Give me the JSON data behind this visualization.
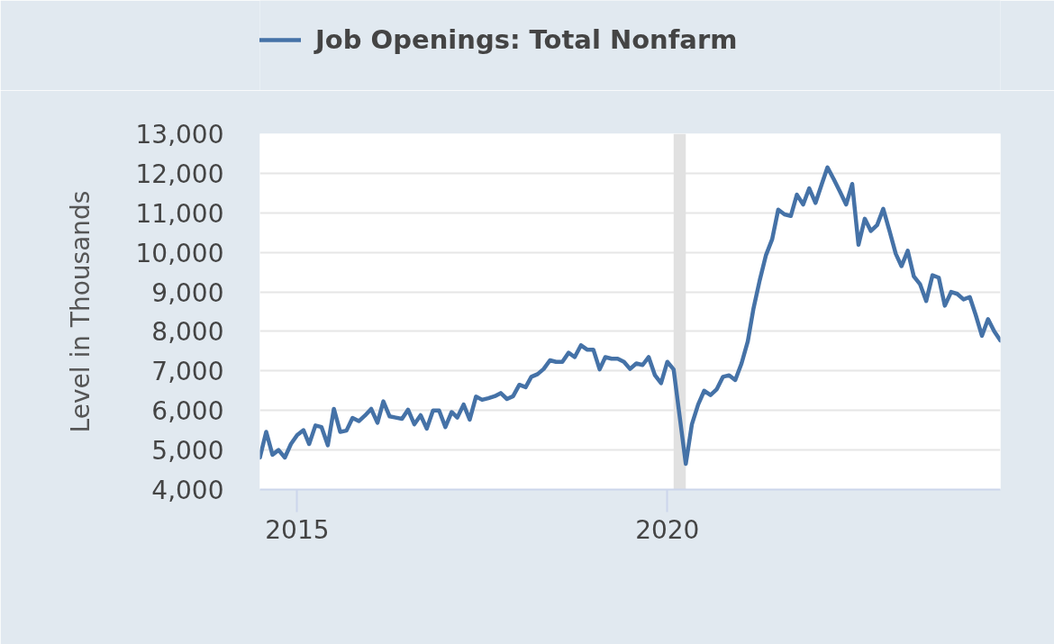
{
  "chart_data": {
    "type": "line",
    "ylabel": "Level in Thousands",
    "x": [
      "2014-07",
      "2014-08",
      "2014-09",
      "2014-10",
      "2014-11",
      "2014-12",
      "2015-01",
      "2015-02",
      "2015-03",
      "2015-04",
      "2015-05",
      "2015-06",
      "2015-07",
      "2015-08",
      "2015-09",
      "2015-10",
      "2015-11",
      "2015-12",
      "2016-01",
      "2016-02",
      "2016-03",
      "2016-04",
      "2016-05",
      "2016-06",
      "2016-07",
      "2016-08",
      "2016-09",
      "2016-10",
      "2016-11",
      "2016-12",
      "2017-01",
      "2017-02",
      "2017-03",
      "2017-04",
      "2017-05",
      "2017-06",
      "2017-07",
      "2017-08",
      "2017-09",
      "2017-10",
      "2017-11",
      "2017-12",
      "2018-01",
      "2018-02",
      "2018-03",
      "2018-04",
      "2018-05",
      "2018-06",
      "2018-07",
      "2018-08",
      "2018-09",
      "2018-10",
      "2018-11",
      "2018-12",
      "2019-01",
      "2019-02",
      "2019-03",
      "2019-04",
      "2019-05",
      "2019-06",
      "2019-07",
      "2019-08",
      "2019-09",
      "2019-10",
      "2019-11",
      "2019-12",
      "2020-01",
      "2020-02",
      "2020-03",
      "2020-04",
      "2020-05",
      "2020-06",
      "2020-07",
      "2020-08",
      "2020-09",
      "2020-10",
      "2020-11",
      "2020-12",
      "2021-01",
      "2021-02",
      "2021-03",
      "2021-04",
      "2021-05",
      "2021-06",
      "2021-07",
      "2021-08",
      "2021-09",
      "2021-10",
      "2021-11",
      "2021-12",
      "2022-01",
      "2022-02",
      "2022-03",
      "2022-04",
      "2022-05",
      "2022-06",
      "2022-07",
      "2022-08",
      "2022-09",
      "2022-10",
      "2022-11",
      "2022-12",
      "2023-01",
      "2023-02",
      "2023-03",
      "2023-04",
      "2023-05",
      "2023-06",
      "2023-07",
      "2023-08",
      "2023-09",
      "2023-10",
      "2023-11",
      "2023-12",
      "2024-01",
      "2024-02",
      "2024-03",
      "2024-04",
      "2024-05",
      "2024-06",
      "2024-07"
    ],
    "series": [
      {
        "name": "Job Openings: Total Nonfarm",
        "color": "#4572a7",
        "values": [
          4810,
          5460,
          4880,
          5000,
          4810,
          5150,
          5380,
          5500,
          5150,
          5620,
          5580,
          5120,
          6040,
          5460,
          5490,
          5810,
          5730,
          5870,
          6040,
          5690,
          6230,
          5850,
          5820,
          5790,
          6020,
          5650,
          5880,
          5540,
          6000,
          6000,
          5580,
          5960,
          5820,
          6150,
          5770,
          6350,
          6270,
          6310,
          6360,
          6440,
          6290,
          6360,
          6650,
          6590,
          6850,
          6920,
          7050,
          7270,
          7230,
          7230,
          7460,
          7350,
          7650,
          7540,
          7540,
          7040,
          7350,
          7310,
          7310,
          7230,
          7050,
          7190,
          7150,
          7350,
          6890,
          6690,
          7230,
          7040,
          5880,
          4650,
          5650,
          6150,
          6500,
          6390,
          6540,
          6850,
          6890,
          6770,
          7190,
          7750,
          8580,
          9300,
          9920,
          10330,
          11080,
          10960,
          10920,
          11460,
          11210,
          11620,
          11250,
          11730,
          12150,
          11850,
          11540,
          11210,
          11730,
          10190,
          10850,
          10540,
          10690,
          11100,
          10540,
          9960,
          9650,
          10040,
          9390,
          9190,
          8770,
          9420,
          9360,
          8650,
          9000,
          8950,
          8810,
          8870,
          8420,
          7890,
          8310,
          8000,
          7770
        ]
      }
    ],
    "xlim": [
      "2014-07",
      "2024-07"
    ],
    "xticks": [
      "2015",
      "2020"
    ],
    "ylim": [
      4000,
      13000
    ],
    "yticks": [
      {
        "value": 4000,
        "label": "4,000"
      },
      {
        "value": 5000,
        "label": "5,000"
      },
      {
        "value": 6000,
        "label": "6,000"
      },
      {
        "value": 7000,
        "label": "7,000"
      },
      {
        "value": 8000,
        "label": "8,000"
      },
      {
        "value": 9000,
        "label": "9,000"
      },
      {
        "value": 10000,
        "label": "10,000"
      },
      {
        "value": 11000,
        "label": "11,000"
      },
      {
        "value": 12000,
        "label": "12,000"
      },
      {
        "value": 13000,
        "label": "13,000"
      }
    ],
    "bands": [
      {
        "axis": "x",
        "from": "2020-02",
        "to": "2020-04",
        "color": "#e1e1e1"
      }
    ],
    "grid": "y",
    "legend": "top left"
  }
}
